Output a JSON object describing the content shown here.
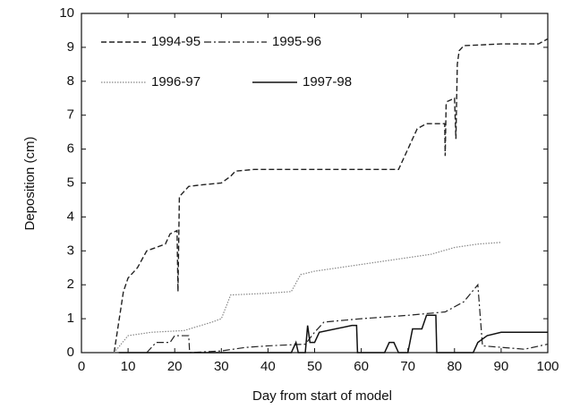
{
  "chart_data": {
    "type": "line",
    "xlabel": "Day from start of model",
    "ylabel": "Deposition (cm)",
    "xlim": [
      0,
      100
    ],
    "xticks": [
      0,
      10,
      20,
      30,
      40,
      50,
      60,
      70,
      80,
      90,
      100
    ],
    "ylim": [
      0,
      10
    ],
    "yticks": [
      0,
      1,
      2,
      3,
      4,
      5,
      6,
      7,
      8,
      9,
      10
    ],
    "legend": "upper left",
    "series": [
      {
        "name": "1994-95",
        "color": "#222222",
        "x": [
          7,
          9,
          10,
          12,
          14,
          16,
          18,
          19,
          20.5,
          20.7,
          21,
          23,
          26,
          30,
          32,
          33,
          37,
          50,
          60,
          68,
          70,
          72,
          74,
          77.9,
          78,
          78.2,
          78.4,
          80,
          80.3,
          80.6,
          81,
          82,
          90,
          98,
          100
        ],
        "values": [
          0,
          1.8,
          2.2,
          2.5,
          3.0,
          3.1,
          3.2,
          3.5,
          3.6,
          1.8,
          4.6,
          4.9,
          4.95,
          5.0,
          5.2,
          5.35,
          5.4,
          5.4,
          5.4,
          5.4,
          6.0,
          6.6,
          6.75,
          6.75,
          5.8,
          7.3,
          7.4,
          7.5,
          6.3,
          8.5,
          8.9,
          9.05,
          9.1,
          9.1,
          9.25
        ]
      },
      {
        "name": "1995-96",
        "color": "#222222",
        "x": [
          14,
          16,
          19,
          20,
          23,
          23.2,
          30,
          35,
          40,
          48,
          50,
          52,
          60,
          70,
          78,
          82,
          85,
          86,
          95,
          100
        ],
        "values": [
          0,
          0.3,
          0.3,
          0.5,
          0.5,
          0,
          0.05,
          0.15,
          0.2,
          0.25,
          0.6,
          0.9,
          1.0,
          1.1,
          1.2,
          1.5,
          2.0,
          0.2,
          0.1,
          0.25
        ]
      },
      {
        "name": "1996-97",
        "color": "#888888",
        "x": [
          7,
          10,
          15,
          22,
          28,
          30,
          32,
          40,
          45,
          47,
          50,
          60,
          65,
          75,
          80,
          85,
          90
        ],
        "values": [
          0,
          0.5,
          0.6,
          0.65,
          0.9,
          1.0,
          1.7,
          1.75,
          1.8,
          2.3,
          2.4,
          2.6,
          2.7,
          2.9,
          3.1,
          3.2,
          3.25
        ]
      },
      {
        "name": "1997-98",
        "color": "#111111",
        "x": [
          8,
          45,
          46,
          46.5,
          48,
          48.5,
          49,
          50,
          51,
          58,
          59,
          59.2,
          65,
          66,
          67,
          68,
          70,
          71,
          73,
          74,
          76,
          76.2,
          84,
          85,
          87,
          90,
          100
        ],
        "values": [
          0,
          0,
          0.3,
          0,
          0,
          0.8,
          0.3,
          0.3,
          0.6,
          0.8,
          0.8,
          0,
          0,
          0.3,
          0.3,
          0,
          0,
          0.7,
          0.7,
          1.1,
          1.1,
          0,
          0,
          0.3,
          0.5,
          0.6,
          0.6
        ]
      }
    ]
  }
}
